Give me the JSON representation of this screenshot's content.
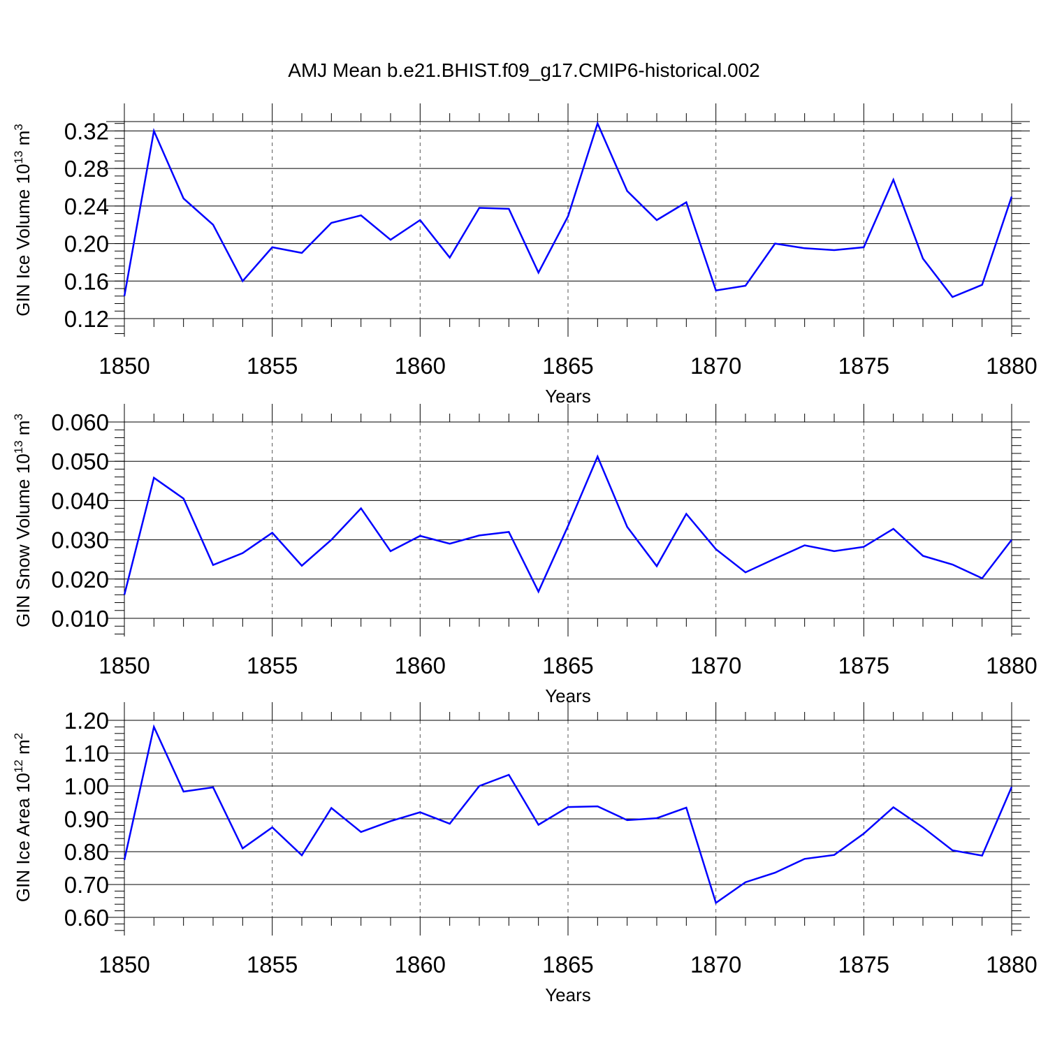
{
  "figure": {
    "title": "AMJ Mean b.e21.BHIST.f09_g17.CMIP6-historical.002"
  },
  "colors": {
    "series": "#0000ff",
    "axis": "#000000",
    "grid": "#555555"
  },
  "chart_data": [
    {
      "type": "line",
      "title": "",
      "xlabel": "Years",
      "ylabel": "GIN Ice Volume 10",
      "ylabel_exp": "13",
      "ylabel_unit": " m",
      "ylabel_unit_exp": "3",
      "xlim": [
        1850,
        1880
      ],
      "ylim": [
        0.12,
        0.33
      ],
      "xticks": [
        1850,
        1855,
        1860,
        1865,
        1870,
        1875,
        1880
      ],
      "xtick_labels": [
        "1850",
        "1855",
        "1860",
        "1865",
        "1870",
        "1875",
        "1880"
      ],
      "yticks": [
        0.12,
        0.16,
        0.2,
        0.24,
        0.28,
        0.32
      ],
      "ytick_labels": [
        "0.12",
        "0.16",
        "0.20",
        "0.24",
        "0.28",
        "0.32"
      ],
      "yminor_step": 0.008,
      "grid": "vertical dashed at major x ticks",
      "x": [
        1850,
        1851,
        1852,
        1853,
        1854,
        1855,
        1856,
        1857,
        1858,
        1859,
        1860,
        1861,
        1862,
        1863,
        1864,
        1865,
        1866,
        1867,
        1868,
        1869,
        1870,
        1871,
        1872,
        1873,
        1874,
        1875,
        1876,
        1877,
        1878,
        1879,
        1880
      ],
      "values": [
        0.144,
        0.32,
        0.248,
        0.22,
        0.16,
        0.196,
        0.19,
        0.222,
        0.23,
        0.204,
        0.225,
        0.185,
        0.238,
        0.237,
        0.169,
        0.229,
        0.328,
        0.256,
        0.225,
        0.244,
        0.15,
        0.155,
        0.2,
        0.195,
        0.193,
        0.196,
        0.268,
        0.184,
        0.143,
        0.156,
        0.25
      ]
    },
    {
      "type": "line",
      "title": "",
      "xlabel": "Years",
      "ylabel": "GIN Snow Volume 10",
      "ylabel_exp": "13",
      "ylabel_unit": " m",
      "ylabel_unit_exp": "3",
      "xlim": [
        1850,
        1880
      ],
      "ylim": [
        0.01,
        0.06
      ],
      "xticks": [
        1850,
        1855,
        1860,
        1865,
        1870,
        1875,
        1880
      ],
      "xtick_labels": [
        "1850",
        "1855",
        "1860",
        "1865",
        "1870",
        "1875",
        "1880"
      ],
      "yticks": [
        0.01,
        0.02,
        0.03,
        0.04,
        0.05,
        0.06
      ],
      "ytick_labels": [
        "0.010",
        "0.020",
        "0.030",
        "0.040",
        "0.050",
        "0.060"
      ],
      "yminor_step": 0.002,
      "grid": "vertical dashed at major x ticks",
      "x": [
        1850,
        1851,
        1852,
        1853,
        1854,
        1855,
        1856,
        1857,
        1858,
        1859,
        1860,
        1861,
        1862,
        1863,
        1864,
        1865,
        1866,
        1867,
        1868,
        1869,
        1870,
        1871,
        1872,
        1873,
        1874,
        1875,
        1876,
        1877,
        1878,
        1879,
        1880
      ],
      "values": [
        0.016,
        0.0458,
        0.0405,
        0.0236,
        0.0266,
        0.0318,
        0.0234,
        0.03,
        0.038,
        0.0271,
        0.031,
        0.029,
        0.0311,
        0.032,
        0.0168,
        0.0335,
        0.0512,
        0.0333,
        0.0233,
        0.0366,
        0.0276,
        0.0217,
        0.0252,
        0.0286,
        0.0271,
        0.0282,
        0.0328,
        0.0259,
        0.0237,
        0.0202,
        0.03
      ]
    },
    {
      "type": "line",
      "title": "",
      "xlabel": "Years",
      "ylabel": "GIN Ice Area 10",
      "ylabel_exp": "12",
      "ylabel_unit": " m",
      "ylabel_unit_exp": "2",
      "xlim": [
        1850,
        1880
      ],
      "ylim": [
        0.6,
        1.2
      ],
      "xticks": [
        1850,
        1855,
        1860,
        1865,
        1870,
        1875,
        1880
      ],
      "xtick_labels": [
        "1850",
        "1855",
        "1860",
        "1865",
        "1870",
        "1875",
        "1880"
      ],
      "yticks": [
        0.6,
        0.7,
        0.8,
        0.9,
        1.0,
        1.1,
        1.2
      ],
      "ytick_labels": [
        "0.60",
        "0.70",
        "0.80",
        "0.90",
        "1.00",
        "1.10",
        "1.20"
      ],
      "yminor_step": 0.02,
      "grid": "vertical dashed at major x ticks",
      "x": [
        1850,
        1851,
        1852,
        1853,
        1854,
        1855,
        1856,
        1857,
        1858,
        1859,
        1860,
        1861,
        1862,
        1863,
        1864,
        1865,
        1866,
        1867,
        1868,
        1869,
        1870,
        1871,
        1872,
        1873,
        1874,
        1875,
        1876,
        1877,
        1878,
        1879,
        1880
      ],
      "values": [
        0.775,
        1.18,
        0.983,
        0.996,
        0.81,
        0.874,
        0.789,
        0.933,
        0.86,
        0.893,
        0.92,
        0.885,
        1.0,
        1.034,
        0.882,
        0.936,
        0.938,
        0.896,
        0.902,
        0.934,
        0.644,
        0.707,
        0.736,
        0.778,
        0.79,
        0.855,
        0.935,
        0.874,
        0.804,
        0.788,
        0.997
      ]
    }
  ]
}
